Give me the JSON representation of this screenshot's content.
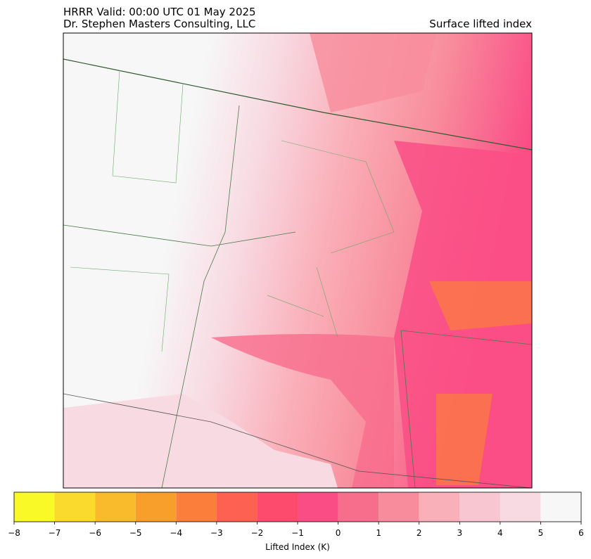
{
  "header": {
    "title_left": "HRRR  Valid: 00:00 UTC 01 May 2025",
    "subtitle_left": "Dr. Stephen Masters Consulting, LLC",
    "title_right": "Surface lifted index"
  },
  "colorbar": {
    "label": "Lifted Index (K)",
    "ticks": [
      {
        "value": -8,
        "label": "−8"
      },
      {
        "value": -7,
        "label": "−7"
      },
      {
        "value": -6,
        "label": "−6"
      },
      {
        "value": -5,
        "label": "−5"
      },
      {
        "value": -4,
        "label": "−4"
      },
      {
        "value": -3,
        "label": "−3"
      },
      {
        "value": -2,
        "label": "−2"
      },
      {
        "value": -1,
        "label": "−1"
      },
      0,
      1,
      2,
      3,
      4,
      5,
      6
    ],
    "colors": [
      "#f9f928",
      "#fbda2e",
      "#f9bb2c",
      "#f89f2b",
      "#fb7f3a",
      "#fc6152",
      "#fc4b6c",
      "#fa4d86",
      "#f76d8c",
      "#f88c9c",
      "#fab0b9",
      "#f8c6d0",
      "#f8dae3",
      "#f7f7f7"
    ]
  }
}
